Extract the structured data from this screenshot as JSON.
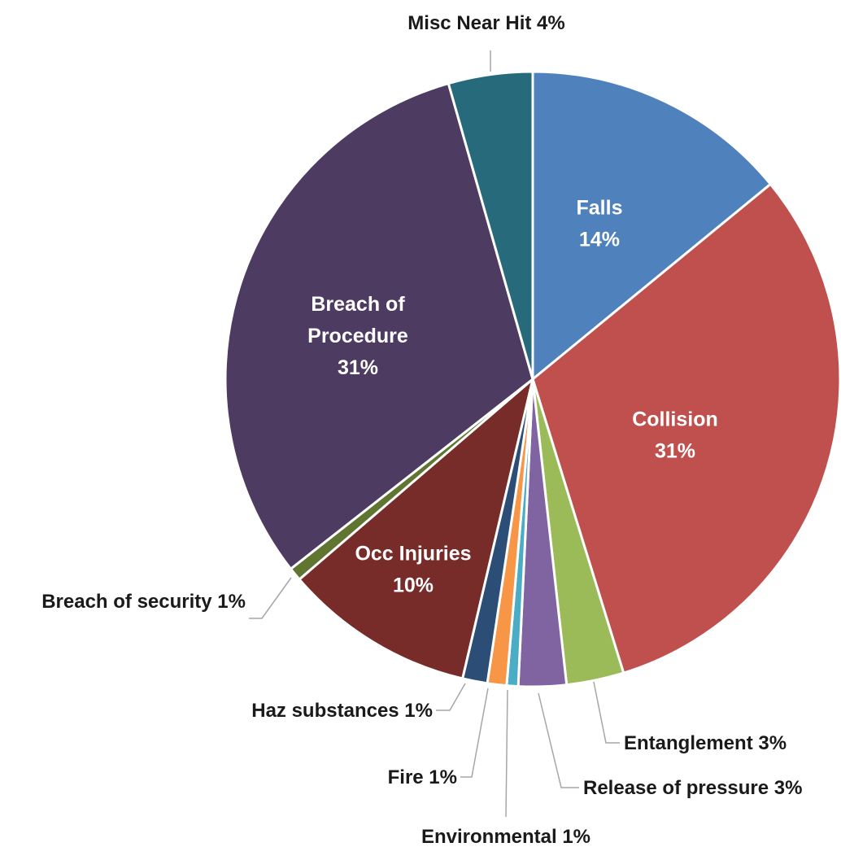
{
  "chart_data": {
    "type": "pie",
    "start_angle_deg": 0,
    "direction": "clockwise",
    "slices": [
      {
        "name": "Falls",
        "value": 14,
        "label": "14%",
        "color": "#4f81bd",
        "label_mode": "inside"
      },
      {
        "name": "Collision",
        "value": 31,
        "label": "31%",
        "color": "#c0504d",
        "label_mode": "inside"
      },
      {
        "name": "Entanglement",
        "value": 3,
        "label": "3%",
        "color": "#9bbb59",
        "label_mode": "outside"
      },
      {
        "name": "Release of pressure",
        "value": 2.5,
        "label": "3%",
        "color": "#8064a2",
        "label_mode": "outside"
      },
      {
        "name": "Environmental",
        "value": 0.6,
        "label": "1%",
        "color": "#4bacc6",
        "label_mode": "outside"
      },
      {
        "name": "Fire",
        "value": 1.0,
        "label": "1%",
        "color": "#f79646",
        "label_mode": "outside"
      },
      {
        "name": "Haz substances",
        "value": 1.3,
        "label": "1%",
        "color": "#2c4d75",
        "label_mode": "outside"
      },
      {
        "name": "Occ Injuries",
        "value": 10,
        "label": "10%",
        "color": "#772c2a",
        "label_mode": "inside"
      },
      {
        "name": "Breach of security",
        "value": 0.7,
        "label": "1%",
        "color": "#5f7530",
        "label_mode": "outside"
      },
      {
        "name": "Breach of Procedure",
        "value": 31,
        "label": "31%",
        "color": "#4d3b62",
        "label_mode": "inside"
      },
      {
        "name": "Misc Near Hit",
        "value": 4.4,
        "label": "4%",
        "color": "#276a7c",
        "label_mode": "outside"
      }
    ]
  }
}
